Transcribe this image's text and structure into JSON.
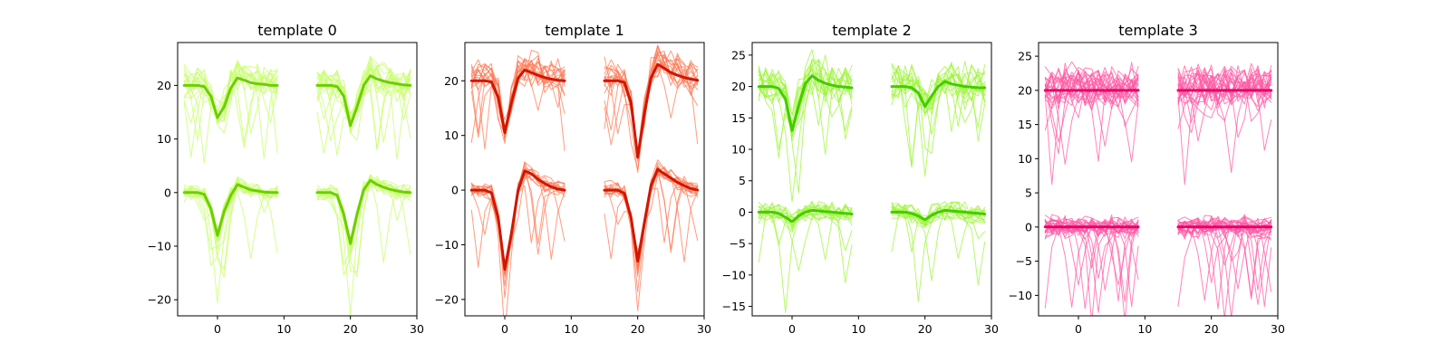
{
  "chart_data": [
    {
      "type": "line",
      "title": "template 0",
      "xlim": [
        -6,
        30
      ],
      "ylim": [
        -23,
        28
      ],
      "xticks": [
        0,
        10,
        20,
        30
      ],
      "yticks": [
        -20,
        -10,
        0,
        10,
        20
      ],
      "x": [
        -5,
        -4,
        -3,
        -2,
        -1,
        0,
        1,
        2,
        3,
        4,
        5,
        6,
        7,
        8,
        9,
        15,
        16,
        17,
        18,
        19,
        20,
        21,
        22,
        23,
        24,
        25,
        26,
        27,
        28,
        29
      ],
      "colors": {
        "mean": "#6ccf00",
        "trace": "#c6ff66"
      },
      "series": [
        {
          "values": [
            20,
            20,
            20,
            19.8,
            18,
            14,
            16,
            19.5,
            21.4,
            21,
            20.5,
            20.3,
            20.2,
            20,
            20,
            20,
            20,
            20,
            19.8,
            18,
            12.5,
            16,
            20,
            21.8,
            21.2,
            20.8,
            20.5,
            20.3,
            20.1,
            20
          ]
        },
        {
          "values": [
            0,
            0,
            0,
            -0.3,
            -3,
            -8,
            -3.5,
            -0.5,
            1.5,
            1,
            0.5,
            0.3,
            0.1,
            0,
            0,
            0,
            0,
            0,
            -0.5,
            -4,
            -9.5,
            -4,
            0.5,
            2.3,
            1.5,
            1,
            0.6,
            0.3,
            0.1,
            0
          ]
        }
      ]
    },
    {
      "type": "line",
      "title": "template 1",
      "xlim": [
        -6,
        30
      ],
      "ylim": [
        -23,
        27
      ],
      "xticks": [
        0,
        10,
        20,
        30
      ],
      "yticks": [
        -20,
        -10,
        0,
        10,
        20
      ],
      "x": [
        -5,
        -4,
        -3,
        -2,
        -1,
        0,
        1,
        2,
        3,
        4,
        5,
        6,
        7,
        8,
        9,
        15,
        16,
        17,
        18,
        19,
        20,
        21,
        22,
        23,
        24,
        25,
        26,
        27,
        28,
        29
      ],
      "colors": {
        "mean": "#d11600",
        "trace": "#ff7a55"
      },
      "series": [
        {
          "values": [
            20,
            20,
            20,
            19.8,
            17,
            10.5,
            16,
            20.5,
            22,
            21.5,
            21,
            20.6,
            20.3,
            20.1,
            20,
            20,
            20,
            20,
            19.7,
            16,
            6,
            14,
            20.5,
            23,
            22.3,
            21.5,
            21,
            20.6,
            20.3,
            20.1
          ]
        },
        {
          "values": [
            0,
            0,
            0,
            -0.5,
            -5,
            -14.5,
            -8,
            0,
            3.5,
            3,
            2,
            1.2,
            0.6,
            0.2,
            0,
            0,
            0,
            0,
            -0.6,
            -5,
            -13,
            -6,
            0.8,
            3.8,
            3,
            2.2,
            1.4,
            0.8,
            0.3,
            0
          ]
        }
      ]
    },
    {
      "type": "line",
      "title": "template 2",
      "xlim": [
        -6,
        30
      ],
      "ylim": [
        -16.5,
        27
      ],
      "xticks": [
        0,
        10,
        20,
        30
      ],
      "yticks": [
        -15,
        -10,
        -5,
        0,
        5,
        10,
        15,
        20,
        25
      ],
      "x": [
        -5,
        -4,
        -3,
        -2,
        -1,
        0,
        1,
        2,
        3,
        4,
        5,
        6,
        7,
        8,
        9,
        15,
        16,
        17,
        18,
        19,
        20,
        21,
        22,
        23,
        24,
        25,
        26,
        27,
        28,
        29
      ],
      "colors": {
        "mean": "#44cc00",
        "trace": "#9ef53a"
      },
      "series": [
        {
          "values": [
            20,
            20,
            20,
            19.7,
            18,
            13,
            17,
            20.5,
            21.7,
            21,
            20.5,
            20.2,
            20,
            19.9,
            19.8,
            20,
            20,
            20,
            19.8,
            19,
            16.8,
            18.5,
            20,
            20.8,
            20.4,
            20.2,
            20,
            19.9,
            19.8,
            19.8
          ]
        },
        {
          "values": [
            0,
            0,
            0,
            -0.2,
            -0.8,
            -1.5,
            -0.6,
            0,
            0.3,
            0.2,
            0.1,
            0,
            -0.1,
            -0.2,
            -0.3,
            0,
            0,
            0,
            -0.2,
            -0.6,
            -1.2,
            -0.5,
            0,
            0.3,
            0.2,
            0.1,
            0,
            -0.1,
            -0.2,
            -0.3
          ]
        }
      ]
    },
    {
      "type": "line",
      "title": "template 3",
      "xlim": [
        -6,
        30
      ],
      "ylim": [
        -13,
        27
      ],
      "xticks": [
        0,
        10,
        20,
        30
      ],
      "yticks": [
        -10,
        -5,
        0,
        5,
        10,
        15,
        20,
        25
      ],
      "x": [
        -5,
        -4,
        -3,
        -2,
        -1,
        0,
        1,
        2,
        3,
        4,
        5,
        6,
        7,
        8,
        9,
        15,
        16,
        17,
        18,
        19,
        20,
        21,
        22,
        23,
        24,
        25,
        26,
        27,
        28,
        29
      ],
      "colors": {
        "mean": "#e8006a",
        "trace": "#ff5aa4"
      },
      "series": [
        {
          "values": [
            20,
            20,
            20,
            20,
            20,
            20,
            20,
            20,
            20,
            20,
            20,
            20,
            20,
            20,
            20,
            20,
            20,
            20,
            20,
            20,
            20,
            20,
            20,
            20,
            20,
            20,
            20,
            20,
            20,
            20
          ]
        },
        {
          "values": [
            0,
            0,
            0,
            0,
            0,
            0,
            0,
            0,
            0,
            0,
            0,
            0,
            0,
            0,
            0,
            0,
            0,
            0,
            0,
            0,
            0,
            0,
            0,
            0,
            0,
            0,
            0,
            0,
            0,
            0
          ]
        }
      ]
    }
  ]
}
